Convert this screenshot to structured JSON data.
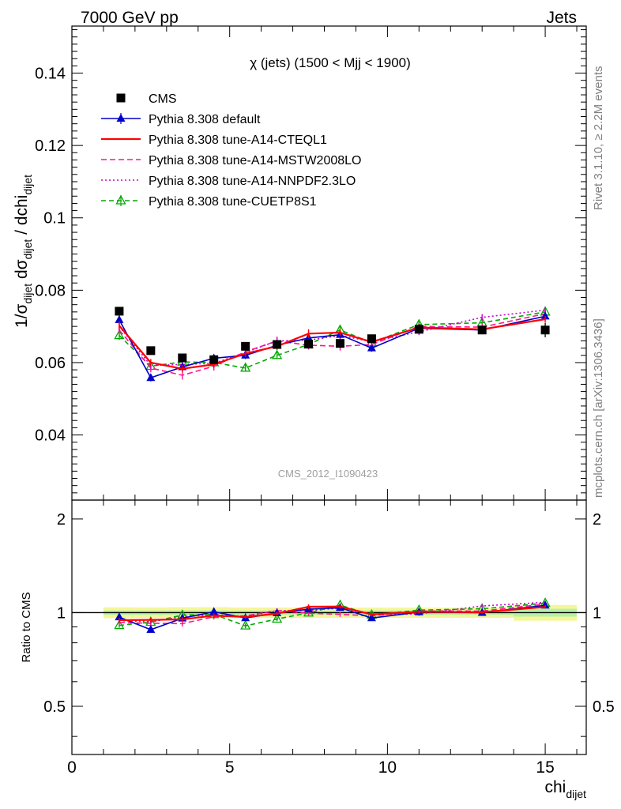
{
  "header": {
    "left": "7000 GeV pp",
    "right": "Jets"
  },
  "side_labels": {
    "rivet": "Rivet 3.1.10, ≥ 2.2M events",
    "mcplots": "mcplots.cern.ch [arXiv:1306.3436]"
  },
  "chart_data": {
    "type": "line",
    "title": "χ (jets) (1500 < Mjj < 1900)",
    "watermark": "CMS_2012_I1090423",
    "xlabel": "chi_dijet",
    "ylabel": "1/σ_dijet dσ_dijet / dchi_dijet",
    "xlim": [
      0,
      16.3
    ],
    "ylim": [
      0.022,
      0.153
    ],
    "xticks": [
      0,
      5,
      10,
      15
    ],
    "yticks": [
      0.04,
      0.06,
      0.08,
      0.1,
      0.12,
      0.14
    ],
    "ytick_labels": [
      "0.04",
      "0.06",
      "0.08",
      "0.1",
      "0.12",
      "0.14"
    ],
    "legend_placement": "top-left",
    "x": [
      1.5,
      2.5,
      3.5,
      4.5,
      5.5,
      6.5,
      7.5,
      8.5,
      9.5,
      11,
      13,
      15
    ],
    "x_edges": [
      1,
      2,
      3,
      4,
      5,
      6,
      7,
      8,
      9,
      10,
      12,
      14,
      16
    ],
    "data": {
      "name": "CMS",
      "values": [
        0.0742,
        0.0633,
        0.0613,
        0.0608,
        0.0645,
        0.065,
        0.0651,
        0.0653,
        0.0666,
        0.0692,
        0.069,
        0.069
      ],
      "errors": [
        0.0012,
        0.001,
        0.001,
        0.001,
        0.001,
        0.001,
        0.001,
        0.001,
        0.001,
        0.0011,
        0.0011,
        0.002
      ],
      "errors2": [
        0.003,
        0.0025,
        0.0025,
        0.0025,
        0.0025,
        0.0025,
        0.0025,
        0.0025,
        0.0025,
        0.0026,
        0.0026,
        0.004
      ]
    },
    "series": [
      {
        "name": "Pythia 8.308 default",
        "color": "#0000cc",
        "marker": "triangle",
        "dash": "",
        "values": [
          0.0718,
          0.0558,
          0.0588,
          0.0612,
          0.062,
          0.0648,
          0.0668,
          0.0677,
          0.064,
          0.0695,
          0.069,
          0.0728
        ],
        "errors": [
          0.0012,
          0.001,
          0.001,
          0.001,
          0.001,
          0.001,
          0.001,
          0.001,
          0.001,
          0.0009,
          0.0009,
          0.0009
        ]
      },
      {
        "name": "Pythia 8.308 tune-A14-CTEQL1",
        "color": "#ff0000",
        "marker": "none",
        "dash": "",
        "values": [
          0.0702,
          0.06,
          0.0583,
          0.0595,
          0.0625,
          0.0645,
          0.068,
          0.0683,
          0.0657,
          0.0697,
          0.0692,
          0.072
        ],
        "errors": [
          0.0012,
          0.001,
          0.001,
          0.001,
          0.001,
          0.001,
          0.0012,
          0.001,
          0.001,
          0.0009,
          0.0009,
          0.0009
        ]
      },
      {
        "name": "Pythia 8.308 tune-A14-MSTW2008LO",
        "color": "#ff1493",
        "marker": "none",
        "dash": "7,4",
        "values": [
          0.069,
          0.0585,
          0.0565,
          0.059,
          0.063,
          0.066,
          0.0648,
          0.0645,
          0.065,
          0.07,
          0.0698,
          0.0735
        ],
        "errors": [
          0.0012,
          0.0012,
          0.0012,
          0.0012,
          0.0012,
          0.0012,
          0.0012,
          0.0012,
          0.0012,
          0.001,
          0.001,
          0.001
        ]
      },
      {
        "name": "Pythia 8.308 tune-A14-NNPDF2.3LO",
        "color": "#cc00cc",
        "marker": "none",
        "dash": "2,3",
        "values": [
          0.07,
          0.0592,
          0.0595,
          0.0598,
          0.0628,
          0.066,
          0.0662,
          0.0675,
          0.0658,
          0.0685,
          0.0725,
          0.0745
        ],
        "errors": [
          0.0012,
          0.001,
          0.001,
          0.001,
          0.001,
          0.001,
          0.001,
          0.001,
          0.001,
          0.0009,
          0.0009,
          0.0009
        ]
      },
      {
        "name": "Pythia 8.308 tune-CUETP8S1",
        "color": "#00aa00",
        "marker": "open-triangle",
        "dash": "6,4",
        "values": [
          0.0675,
          0.059,
          0.0602,
          0.06,
          0.0585,
          0.062,
          0.065,
          0.069,
          0.0655,
          0.0705,
          0.071,
          0.074
        ],
        "errors": [
          0.0012,
          0.001,
          0.001,
          0.001,
          0.001,
          0.001,
          0.001,
          0.001,
          0.001,
          0.0009,
          0.0009,
          0.0009
        ]
      }
    ],
    "ratio": {
      "ylabel": "Ratio to CMS",
      "ylim": [
        0.35,
        2.3
      ],
      "log_scale": true,
      "yticks": [
        0.5,
        1,
        2
      ],
      "ytick_labels": [
        "0.5",
        "1",
        "2"
      ]
    }
  }
}
